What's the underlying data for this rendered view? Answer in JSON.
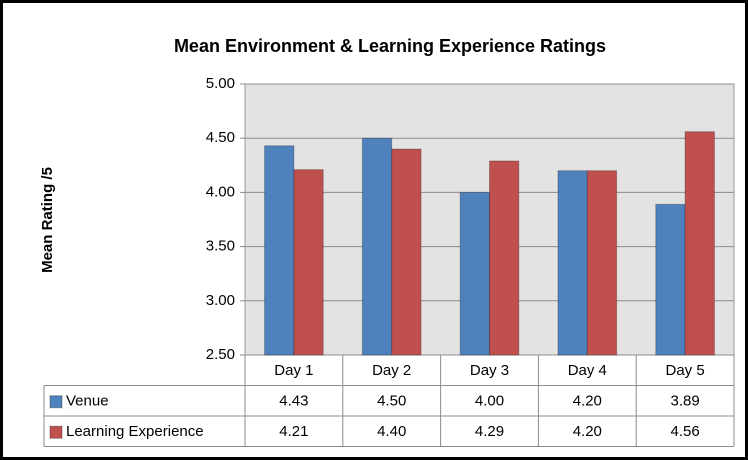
{
  "chart_data": {
    "type": "bar",
    "title": "Mean Environment & Learning Experience Ratings",
    "y_label": "Mean Rating /5",
    "categories": [
      "Day 1",
      "Day 2",
      "Day 3",
      "Day 4",
      "Day 5"
    ],
    "series": [
      {
        "name": "Venue",
        "color": "#4f81bd",
        "values": [
          4.43,
          4.5,
          4.0,
          4.2,
          3.89
        ],
        "value_labels": [
          "4.43",
          "4.50",
          "4.00",
          "4.20",
          "3.89"
        ]
      },
      {
        "name": "Learning Experience",
        "color": "#c0504d",
        "values": [
          4.21,
          4.4,
          4.29,
          4.2,
          4.56
        ],
        "value_labels": [
          "4.21",
          "4.40",
          "4.29",
          "4.20",
          "4.56"
        ]
      }
    ],
    "ylim": [
      2.5,
      5
    ],
    "yticks": [
      {
        "value": 2.5,
        "label": "2.50"
      },
      {
        "value": 3,
        "label": "3.00"
      },
      {
        "value": 3.5,
        "label": "3.50"
      },
      {
        "value": 4,
        "label": "4.00"
      },
      {
        "value": 4.5,
        "label": "4.50"
      },
      {
        "value": 5,
        "label": "5.00"
      }
    ],
    "grid": true
  }
}
